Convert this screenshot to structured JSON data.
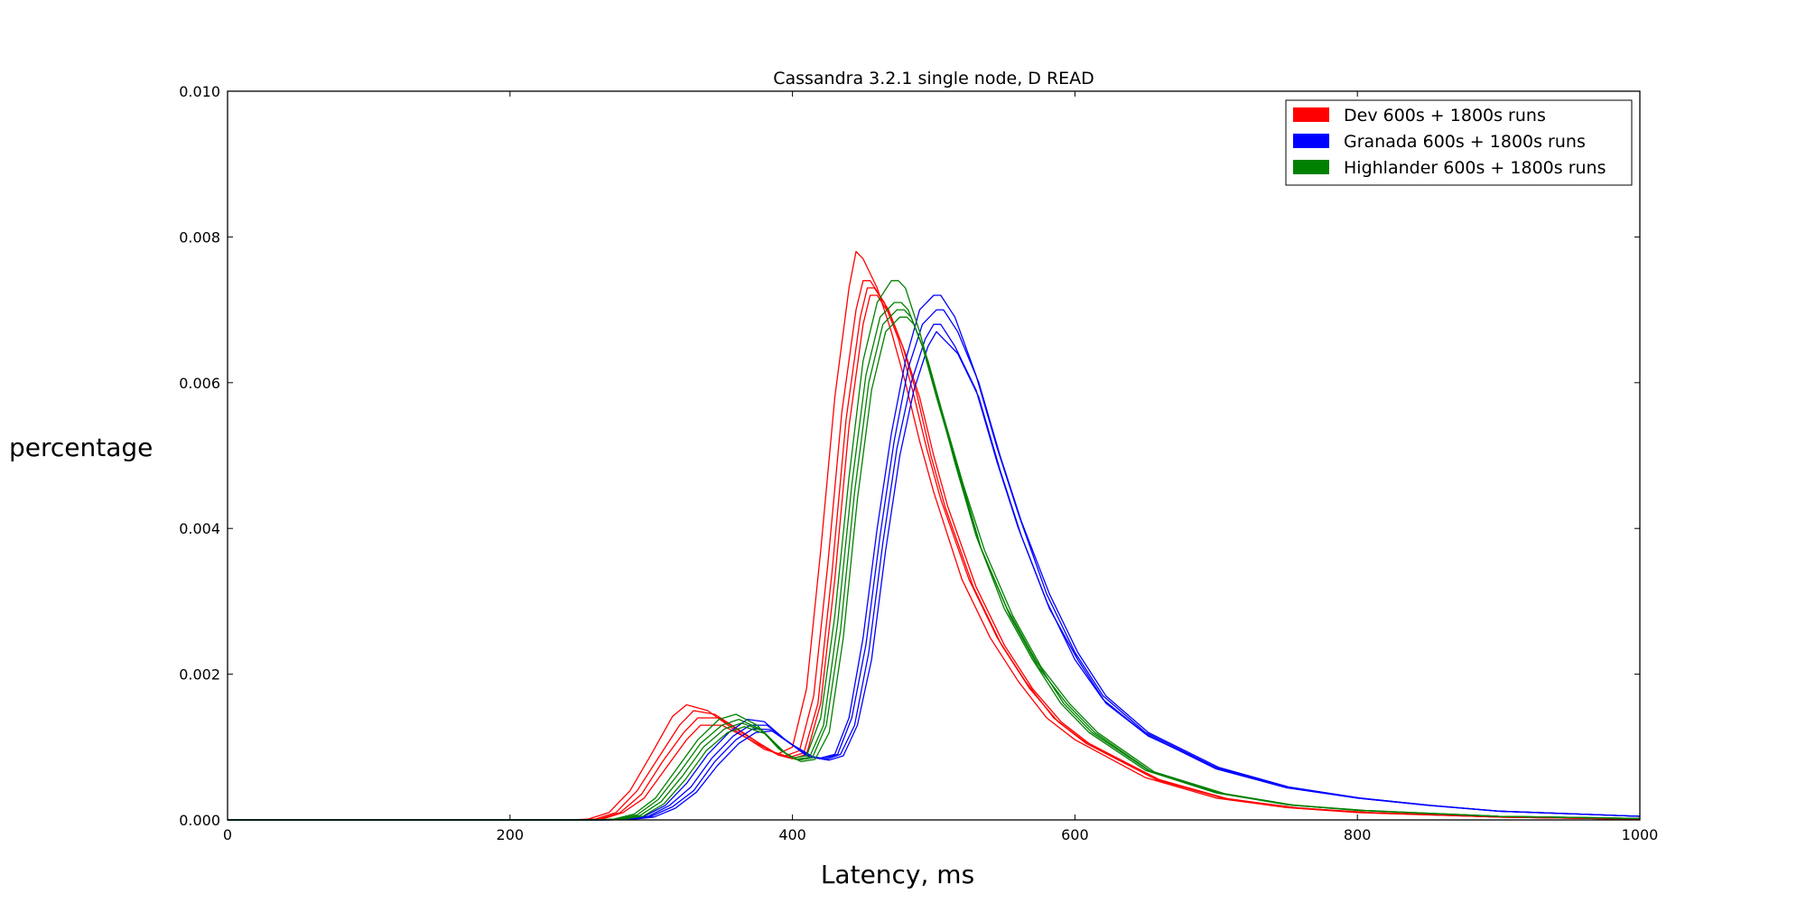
{
  "chart_data": {
    "type": "line",
    "title": "Cassandra 3.2.1 single node, D READ",
    "xlabel": "Latency, ms",
    "ylabel": "percentage",
    "xlim": [
      0,
      1000
    ],
    "ylim": [
      0,
      0.01
    ],
    "xticks": [
      0,
      200,
      400,
      600,
      800,
      1000
    ],
    "xtick_labels": [
      "0",
      "200",
      "400",
      "600",
      "800",
      "1000"
    ],
    "yticks": [
      0,
      0.002,
      0.004,
      0.006,
      0.008,
      0.01
    ],
    "ytick_labels": [
      "0.000",
      "0.002",
      "0.004",
      "0.006",
      "0.008",
      "0.010"
    ],
    "grid": false,
    "legend_position": "top-right",
    "legend": [
      {
        "label": "Dev 600s + 1800s runs",
        "color": "#ff0000"
      },
      {
        "label": "Granada 600s + 1800s runs",
        "color": "#0000ff"
      },
      {
        "label": "Highlander 600s + 1800s runs",
        "color": "#008000"
      }
    ],
    "series": [
      {
        "group": 0,
        "color": "#ff0000",
        "x": [
          0,
          240,
          255,
          270,
          285,
          300,
          315,
          325,
          340,
          360,
          380,
          390,
          400,
          410,
          420,
          430,
          440,
          445,
          450,
          460,
          470,
          480,
          490,
          500,
          520,
          540,
          560,
          580,
          600,
          650,
          700,
          750,
          800,
          900,
          1000
        ],
        "y": [
          0,
          0,
          1e-05,
          0.0001,
          0.0004,
          0.0009,
          0.00142,
          0.00158,
          0.0015,
          0.00122,
          0.00097,
          0.00091,
          0.001,
          0.0018,
          0.0037,
          0.0058,
          0.0073,
          0.0078,
          0.0077,
          0.0073,
          0.0067,
          0.006,
          0.0052,
          0.0045,
          0.0033,
          0.0025,
          0.0019,
          0.0014,
          0.0011,
          0.00058,
          0.0003,
          0.00017,
          0.0001,
          4e-05,
          1e-05
        ]
      },
      {
        "group": 0,
        "color": "#ff0000",
        "x": [
          0,
          245,
          260,
          275,
          290,
          305,
          320,
          330,
          345,
          365,
          385,
          395,
          405,
          415,
          425,
          435,
          445,
          450,
          455,
          465,
          475,
          485,
          495,
          505,
          525,
          545,
          565,
          585,
          605,
          655,
          705,
          755,
          805,
          900,
          1000
        ],
        "y": [
          0,
          0,
          1e-05,
          0.0001,
          0.0004,
          0.00085,
          0.0013,
          0.0015,
          0.00145,
          0.0012,
          0.00094,
          0.00088,
          0.00095,
          0.0017,
          0.0035,
          0.0056,
          0.007,
          0.0074,
          0.0074,
          0.0071,
          0.0066,
          0.0059,
          0.0051,
          0.0044,
          0.0033,
          0.0025,
          0.0019,
          0.0014,
          0.0011,
          0.00058,
          0.0003,
          0.00017,
          0.0001,
          4e-05,
          1e-05
        ]
      },
      {
        "group": 0,
        "color": "#ff0000",
        "x": [
          0,
          250,
          265,
          280,
          295,
          310,
          325,
          335,
          350,
          370,
          390,
          400,
          410,
          420,
          430,
          440,
          450,
          455,
          460,
          470,
          480,
          490,
          500,
          510,
          530,
          550,
          570,
          590,
          610,
          660,
          710,
          760,
          810,
          900,
          1000
        ],
        "y": [
          0,
          0,
          1e-05,
          0.0001,
          0.0003,
          0.0007,
          0.0011,
          0.0013,
          0.0013,
          0.0011,
          0.00089,
          0.00084,
          0.0009,
          0.0016,
          0.0033,
          0.0054,
          0.0068,
          0.0072,
          0.0072,
          0.0069,
          0.0064,
          0.0058,
          0.005,
          0.0043,
          0.0032,
          0.0024,
          0.0018,
          0.00135,
          0.00105,
          0.00055,
          0.00028,
          0.00016,
          0.0001,
          4e-05,
          1e-05
        ]
      },
      {
        "group": 0,
        "color": "#ff0000",
        "x": [
          0,
          248,
          263,
          278,
          293,
          308,
          323,
          333,
          348,
          368,
          388,
          398,
          408,
          418,
          428,
          438,
          448,
          453,
          458,
          468,
          478,
          488,
          498,
          508,
          528,
          548,
          568,
          588,
          608,
          658,
          708,
          758,
          808,
          900,
          1000
        ],
        "y": [
          0,
          0,
          1e-05,
          0.0001,
          0.00035,
          0.0008,
          0.0012,
          0.0014,
          0.0014,
          0.00115,
          0.00092,
          0.00086,
          0.00092,
          0.0016,
          0.0034,
          0.0055,
          0.0069,
          0.0073,
          0.0073,
          0.007,
          0.0065,
          0.00585,
          0.005,
          0.0043,
          0.0032,
          0.0024,
          0.0018,
          0.00135,
          0.00105,
          0.00055,
          0.00028,
          0.00016,
          0.0001,
          4e-05,
          1e-05
        ]
      },
      {
        "group": 1,
        "color": "#0000ff",
        "x": [
          0,
          265,
          280,
          295,
          310,
          325,
          340,
          355,
          368,
          380,
          395,
          410,
          420,
          430,
          440,
          450,
          460,
          470,
          480,
          490,
          500,
          505,
          515,
          530,
          545,
          560,
          580,
          600,
          620,
          650,
          700,
          750,
          800,
          850,
          900,
          1000
        ],
        "y": [
          0,
          0,
          1e-05,
          5e-05,
          0.0002,
          0.0005,
          0.0009,
          0.0012,
          0.00138,
          0.00135,
          0.0011,
          0.00088,
          0.00085,
          0.0009,
          0.0014,
          0.0025,
          0.004,
          0.0053,
          0.0063,
          0.007,
          0.0072,
          0.0072,
          0.0069,
          0.0061,
          0.0051,
          0.0042,
          0.0031,
          0.0023,
          0.0017,
          0.0012,
          0.00072,
          0.00045,
          0.0003,
          0.0002,
          0.00012,
          5e-05
        ]
      },
      {
        "group": 1,
        "color": "#0000ff",
        "x": [
          0,
          268,
          283,
          298,
          313,
          328,
          343,
          358,
          370,
          382,
          397,
          412,
          422,
          432,
          442,
          452,
          462,
          472,
          482,
          492,
          502,
          507,
          517,
          532,
          547,
          562,
          582,
          602,
          622,
          652,
          702,
          752,
          802,
          852,
          900,
          1000
        ],
        "y": [
          0,
          0,
          1e-05,
          5e-05,
          0.0002,
          0.00045,
          0.00085,
          0.00115,
          0.0013,
          0.0013,
          0.00107,
          0.00087,
          0.00084,
          0.0009,
          0.0014,
          0.0024,
          0.0039,
          0.0052,
          0.0062,
          0.0068,
          0.007,
          0.007,
          0.0067,
          0.006,
          0.005,
          0.0041,
          0.0031,
          0.0023,
          0.0017,
          0.0012,
          0.00072,
          0.00045,
          0.0003,
          0.0002,
          0.00012,
          5e-05
        ]
      },
      {
        "group": 1,
        "color": "#0000ff",
        "x": [
          0,
          270,
          285,
          300,
          315,
          330,
          345,
          360,
          372,
          384,
          399,
          414,
          424,
          434,
          444,
          454,
          464,
          474,
          484,
          494,
          500,
          505,
          515,
          530,
          545,
          560,
          580,
          600,
          620,
          650,
          700,
          750,
          800,
          850,
          900,
          1000
        ],
        "y": [
          0,
          0,
          1e-05,
          5e-05,
          0.00018,
          0.0004,
          0.0008,
          0.0011,
          0.00125,
          0.00124,
          0.00104,
          0.00086,
          0.00083,
          0.0009,
          0.0013,
          0.0023,
          0.0038,
          0.0051,
          0.006,
          0.0066,
          0.0068,
          0.0068,
          0.0065,
          0.0059,
          0.0049,
          0.004,
          0.003,
          0.0022,
          0.00165,
          0.00118,
          0.0007,
          0.00044,
          0.0003,
          0.0002,
          0.00012,
          5e-05
        ]
      },
      {
        "group": 1,
        "color": "#0000ff",
        "x": [
          0,
          272,
          287,
          302,
          317,
          332,
          347,
          362,
          374,
          386,
          401,
          416,
          426,
          436,
          446,
          456,
          466,
          476,
          486,
          496,
          502,
          507,
          517,
          532,
          547,
          562,
          582,
          602,
          622,
          652,
          702,
          752,
          802,
          852,
          900,
          1000
        ],
        "y": [
          0,
          0,
          1e-05,
          4e-05,
          0.00016,
          0.00038,
          0.00075,
          0.00105,
          0.0012,
          0.00122,
          0.00102,
          0.00085,
          0.00082,
          0.00088,
          0.0013,
          0.0022,
          0.0037,
          0.005,
          0.0059,
          0.0065,
          0.0067,
          0.0066,
          0.0064,
          0.0058,
          0.0048,
          0.0039,
          0.0029,
          0.0022,
          0.0016,
          0.00115,
          0.0007,
          0.00044,
          0.0003,
          0.0002,
          0.00012,
          5e-05
        ]
      },
      {
        "group": 2,
        "color": "#008000",
        "x": [
          0,
          258,
          273,
          288,
          303,
          318,
          333,
          348,
          360,
          375,
          390,
          400,
          410,
          420,
          430,
          440,
          450,
          460,
          470,
          475,
          480,
          490,
          500,
          515,
          530,
          550,
          570,
          590,
          610,
          650,
          700,
          750,
          800,
          900,
          1000
        ],
        "y": [
          0,
          0,
          1e-05,
          8e-05,
          0.0003,
          0.0007,
          0.0011,
          0.00138,
          0.00145,
          0.0013,
          0.00098,
          0.00085,
          0.00088,
          0.0014,
          0.0028,
          0.0047,
          0.0063,
          0.0071,
          0.0074,
          0.0074,
          0.0073,
          0.0067,
          0.006,
          0.0049,
          0.0039,
          0.0029,
          0.0022,
          0.0016,
          0.0012,
          0.00068,
          0.00037,
          0.00021,
          0.00013,
          5e-05,
          2e-05
        ]
      },
      {
        "group": 2,
        "color": "#008000",
        "x": [
          0,
          260,
          275,
          290,
          305,
          320,
          335,
          350,
          362,
          377,
          392,
          402,
          412,
          422,
          432,
          442,
          452,
          462,
          472,
          477,
          482,
          492,
          502,
          517,
          532,
          552,
          572,
          592,
          612,
          652,
          702,
          752,
          802,
          900,
          1000
        ],
        "y": [
          0,
          0,
          1e-05,
          7e-05,
          0.00028,
          0.00065,
          0.00105,
          0.0013,
          0.00138,
          0.00125,
          0.00095,
          0.00083,
          0.00086,
          0.0013,
          0.0027,
          0.0046,
          0.0061,
          0.0069,
          0.0071,
          0.0071,
          0.007,
          0.0065,
          0.0058,
          0.0048,
          0.0038,
          0.0029,
          0.0022,
          0.0016,
          0.0012,
          0.00068,
          0.00037,
          0.00021,
          0.00013,
          5e-05,
          2e-05
        ]
      },
      {
        "group": 2,
        "color": "#008000",
        "x": [
          0,
          262,
          277,
          292,
          307,
          322,
          337,
          352,
          364,
          379,
          394,
          404,
          414,
          424,
          434,
          444,
          454,
          464,
          474,
          479,
          484,
          494,
          504,
          519,
          534,
          554,
          574,
          594,
          614,
          654,
          704,
          754,
          804,
          900,
          1000
        ],
        "y": [
          0,
          0,
          1e-05,
          6e-05,
          0.00025,
          0.0006,
          0.001,
          0.00125,
          0.00133,
          0.00122,
          0.00093,
          0.00082,
          0.00085,
          0.0013,
          0.0026,
          0.0045,
          0.006,
          0.0068,
          0.007,
          0.007,
          0.0069,
          0.0064,
          0.0057,
          0.0047,
          0.0037,
          0.0028,
          0.0021,
          0.0016,
          0.0012,
          0.00066,
          0.00036,
          0.0002,
          0.00013,
          5e-05,
          2e-05
        ]
      },
      {
        "group": 2,
        "color": "#008000",
        "x": [
          0,
          264,
          279,
          294,
          309,
          324,
          339,
          354,
          366,
          381,
          396,
          406,
          416,
          426,
          436,
          446,
          456,
          466,
          476,
          481,
          486,
          496,
          506,
          521,
          536,
          556,
          576,
          596,
          616,
          656,
          706,
          756,
          806,
          900,
          1000
        ],
        "y": [
          0,
          0,
          1e-05,
          5e-05,
          0.00022,
          0.00055,
          0.00095,
          0.0012,
          0.00128,
          0.00118,
          0.0009,
          0.0008,
          0.00083,
          0.0012,
          0.0025,
          0.0044,
          0.0059,
          0.0067,
          0.0069,
          0.0069,
          0.0068,
          0.0063,
          0.0056,
          0.0046,
          0.0037,
          0.0028,
          0.0021,
          0.0016,
          0.0012,
          0.00066,
          0.00036,
          0.0002,
          0.00013,
          5e-05,
          2e-05
        ]
      }
    ]
  }
}
